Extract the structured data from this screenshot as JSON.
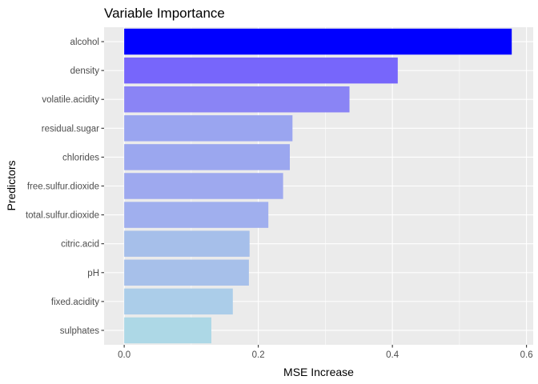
{
  "chart_data": {
    "type": "bar",
    "orientation": "horizontal",
    "title": "Variable Importance",
    "xlabel": "MSE Increase",
    "ylabel": "Predictors",
    "xlim": [
      -0.03,
      0.61
    ],
    "x_ticks": [
      0.0,
      0.2,
      0.4,
      0.6
    ],
    "x_tick_labels": [
      "0.0",
      "0.2",
      "0.4",
      "0.6"
    ],
    "grid": true,
    "legend": "none",
    "panel_color": "#ebebeb",
    "grid_color": "#ffffff",
    "categories": [
      "alcohol",
      "density",
      "volatile.acidity",
      "residual.sugar",
      "chlorides",
      "free.sulfur.dioxide",
      "total.sulfur.dioxide",
      "citric.acid",
      "pH",
      "fixed.acidity",
      "sulphates"
    ],
    "values": [
      0.578,
      0.408,
      0.336,
      0.251,
      0.247,
      0.237,
      0.215,
      0.187,
      0.186,
      0.162,
      0.13
    ],
    "colors": [
      "#0000ff",
      "#7766fb",
      "#8a84f5",
      "#9aa5f0",
      "#9ba7ef",
      "#9ea9ef",
      "#a0afee",
      "#a6bfea",
      "#a7c0ea",
      "#abcde9",
      "#add8e6"
    ]
  }
}
